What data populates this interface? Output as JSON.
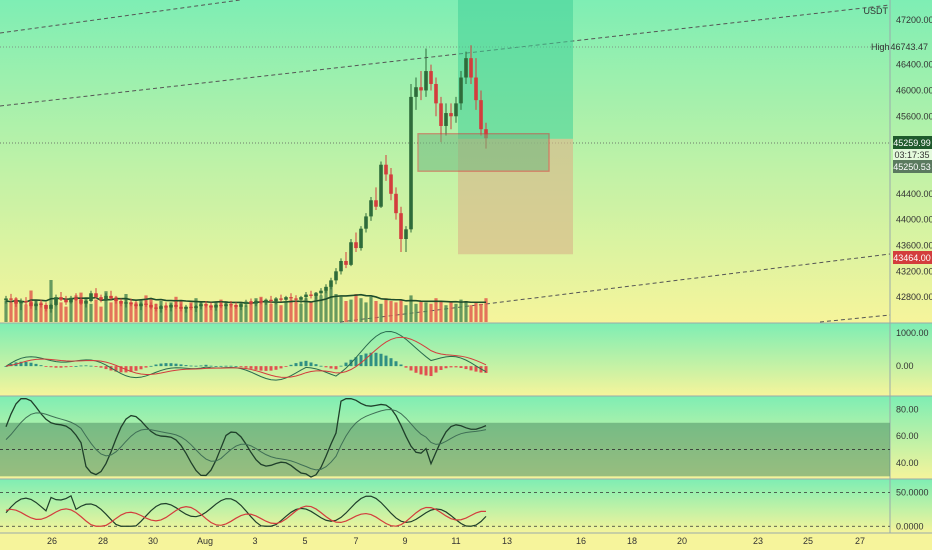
{
  "symbol": {
    "currency": "USDT"
  },
  "colors": {
    "up": "#2e6b3a",
    "down": "#d33d3d",
    "grid": "#bbbbbb",
    "panel_bg_top": "#7eeeb4",
    "panel_bg_bottom": "#f7f39a"
  },
  "price_labels": {
    "high_label": "High",
    "high_value": "46743.47",
    "current": "45259.99",
    "countdown": "03:17:35",
    "second": "45250.53",
    "red_tag": "43464.00",
    "top_partial": "47200.00"
  },
  "x_axis": {
    "ticks": [
      "26",
      "28",
      "30",
      "Aug",
      "3",
      "5",
      "7",
      "9",
      "11",
      "13",
      "16",
      "18",
      "20",
      "23",
      "25",
      "27"
    ]
  },
  "main_chart": {
    "y_ticks": [
      "47200.00",
      "46400.00",
      "46000.00",
      "45600.00",
      "44400.00",
      "44000.00",
      "43600.00",
      "43200.00",
      "42800.00"
    ],
    "ylim": [
      42400,
      47400
    ],
    "candles": [
      [
        42750,
        42820,
        42700,
        42780
      ],
      [
        42780,
        42850,
        42720,
        42760
      ],
      [
        42760,
        42800,
        42650,
        42700
      ],
      [
        42700,
        42780,
        42600,
        42740
      ],
      [
        42740,
        42800,
        42680,
        42720
      ],
      [
        42720,
        42760,
        42620,
        42660
      ],
      [
        42660,
        42740,
        42600,
        42700
      ],
      [
        42700,
        42760,
        42640,
        42680
      ],
      [
        42680,
        42720,
        42580,
        42620
      ],
      [
        42620,
        42700,
        42560,
        42680
      ],
      [
        42680,
        42840,
        42660,
        42800
      ],
      [
        42800,
        42880,
        42740,
        42760
      ],
      [
        42760,
        42820,
        42680,
        42720
      ],
      [
        42720,
        42820,
        42700,
        42790
      ],
      [
        42790,
        42860,
        42740,
        42760
      ],
      [
        42760,
        42800,
        42680,
        42700
      ],
      [
        42700,
        42760,
        42640,
        42740
      ],
      [
        42740,
        42900,
        42720,
        42860
      ],
      [
        42860,
        42940,
        42780,
        42800
      ],
      [
        42800,
        42840,
        42720,
        42760
      ],
      [
        42760,
        42860,
        42740,
        42820
      ],
      [
        42820,
        42900,
        42760,
        42780
      ],
      [
        42780,
        42820,
        42700,
        42740
      ],
      [
        42740,
        42780,
        42660,
        42700
      ],
      [
        42700,
        42760,
        42640,
        42720
      ],
      [
        42720,
        42780,
        42660,
        42690
      ],
      [
        42690,
        42740,
        42620,
        42660
      ],
      [
        42660,
        42720,
        42600,
        42700
      ],
      [
        42700,
        42760,
        42650,
        42680
      ],
      [
        42680,
        42720,
        42610,
        42640
      ],
      [
        42640,
        42700,
        42580,
        42620
      ],
      [
        42620,
        42680,
        42560,
        42660
      ],
      [
        42660,
        42720,
        42600,
        42640
      ],
      [
        42640,
        42700,
        42580,
        42680
      ],
      [
        42680,
        42740,
        42620,
        42650
      ],
      [
        42650,
        42700,
        42580,
        42620
      ],
      [
        42620,
        42680,
        42560,
        42650
      ],
      [
        42650,
        42700,
        42600,
        42630
      ],
      [
        42630,
        42680,
        42570,
        42660
      ],
      [
        42660,
        42720,
        42610,
        42690
      ],
      [
        42690,
        42740,
        42640,
        42670
      ],
      [
        42670,
        42720,
        42600,
        42640
      ],
      [
        42640,
        42700,
        42590,
        42680
      ],
      [
        42680,
        42730,
        42630,
        42660
      ],
      [
        42660,
        42710,
        42610,
        42690
      ],
      [
        42690,
        42740,
        42640,
        42680
      ],
      [
        42680,
        42720,
        42620,
        42650
      ],
      [
        42650,
        42700,
        42600,
        42690
      ],
      [
        42690,
        42760,
        42650,
        42730
      ],
      [
        42730,
        42780,
        42680,
        42700
      ],
      [
        42700,
        42760,
        42660,
        42740
      ],
      [
        42740,
        42790,
        42690,
        42720
      ],
      [
        42720,
        42780,
        42680,
        42760
      ],
      [
        42760,
        42820,
        42700,
        42740
      ],
      [
        42740,
        42800,
        42690,
        42780
      ],
      [
        42780,
        42840,
        42730,
        42760
      ],
      [
        42760,
        42820,
        42710,
        42800
      ],
      [
        42800,
        42860,
        42750,
        42780
      ],
      [
        42780,
        42830,
        42720,
        42760
      ],
      [
        42760,
        42820,
        42700,
        42800
      ],
      [
        42800,
        42880,
        42760,
        42840
      ],
      [
        42840,
        42900,
        42780,
        42820
      ],
      [
        42820,
        42880,
        42760,
        42860
      ],
      [
        42860,
        42940,
        42820,
        42900
      ],
      [
        42900,
        43000,
        42860,
        42960
      ],
      [
        42960,
        43100,
        42920,
        43060
      ],
      [
        43060,
        43250,
        43000,
        43200
      ],
      [
        43200,
        43400,
        43150,
        43360
      ],
      [
        43360,
        43500,
        43250,
        43300
      ],
      [
        43300,
        43700,
        43280,
        43650
      ],
      [
        43650,
        43800,
        43500,
        43560
      ],
      [
        43560,
        43900,
        43520,
        43860
      ],
      [
        43860,
        44100,
        43800,
        44050
      ],
      [
        44050,
        44350,
        43980,
        44300
      ],
      [
        44300,
        44500,
        44150,
        44200
      ],
      [
        44200,
        44900,
        44180,
        44850
      ],
      [
        44850,
        45000,
        44600,
        44700
      ],
      [
        44700,
        44800,
        44300,
        44400
      ],
      [
        44400,
        44500,
        44000,
        44100
      ],
      [
        44100,
        44200,
        43500,
        43700
      ],
      [
        43700,
        43900,
        43500,
        43850
      ],
      [
        43850,
        46100,
        43800,
        45900
      ],
      [
        45900,
        46200,
        45700,
        46050
      ],
      [
        46050,
        46300,
        45850,
        46000
      ],
      [
        46000,
        46650,
        45900,
        46300
      ],
      [
        46300,
        46400,
        46000,
        46100
      ],
      [
        46100,
        46200,
        45600,
        45800
      ],
      [
        45800,
        45900,
        45200,
        45450
      ],
      [
        45450,
        45800,
        45300,
        45650
      ],
      [
        45650,
        45800,
        45400,
        45600
      ],
      [
        45600,
        45900,
        45500,
        45800
      ],
      [
        45800,
        46300,
        45700,
        46200
      ],
      [
        46200,
        46600,
        46100,
        46500
      ],
      [
        46500,
        46700,
        46100,
        46200
      ],
      [
        46200,
        46500,
        45700,
        45850
      ],
      [
        45850,
        46000,
        45300,
        45400
      ],
      [
        45400,
        45500,
        45100,
        45260
      ]
    ],
    "volumes": [
      30,
      28,
      34,
      26,
      25,
      45,
      32,
      28,
      24,
      60,
      35,
      28,
      22,
      30,
      38,
      42,
      35,
      26,
      32,
      22,
      44,
      28,
      36,
      30,
      40,
      26,
      28,
      32,
      38,
      34,
      26,
      30,
      24,
      28,
      36,
      30,
      22,
      28,
      34,
      30,
      26,
      24,
      28,
      32,
      30,
      26,
      22,
      28,
      24,
      30,
      34,
      36,
      28,
      26,
      30,
      24,
      28,
      32,
      30,
      26,
      34,
      28,
      42,
      38,
      46,
      52,
      40,
      36,
      30,
      32,
      40,
      34,
      28,
      36,
      30,
      26,
      34,
      30,
      28,
      32,
      24,
      38,
      26,
      30,
      28,
      26,
      34,
      30,
      24,
      28,
      26,
      32,
      30,
      24,
      28,
      26,
      34
    ],
    "position_box": {
      "entry": 45250.53,
      "target": 47350,
      "stop": 43464,
      "start_index": 90,
      "end_index": 104
    },
    "range_box": {
      "low": 44750,
      "high": 45330,
      "start_index": 76,
      "end_index": 97
    }
  },
  "macd": {
    "y_ticks": [
      "1000.00",
      "0.00"
    ],
    "ylim": [
      -900,
      1300
    ]
  },
  "rsi": {
    "y_ticks": [
      "80.00",
      "60.00",
      "40.00"
    ],
    "ylim": [
      28,
      90
    ],
    "band": [
      30,
      70
    ]
  },
  "dmi": {
    "y_ticks": [
      "50.0000",
      "0.0000"
    ],
    "ylim": [
      -10,
      70
    ]
  }
}
